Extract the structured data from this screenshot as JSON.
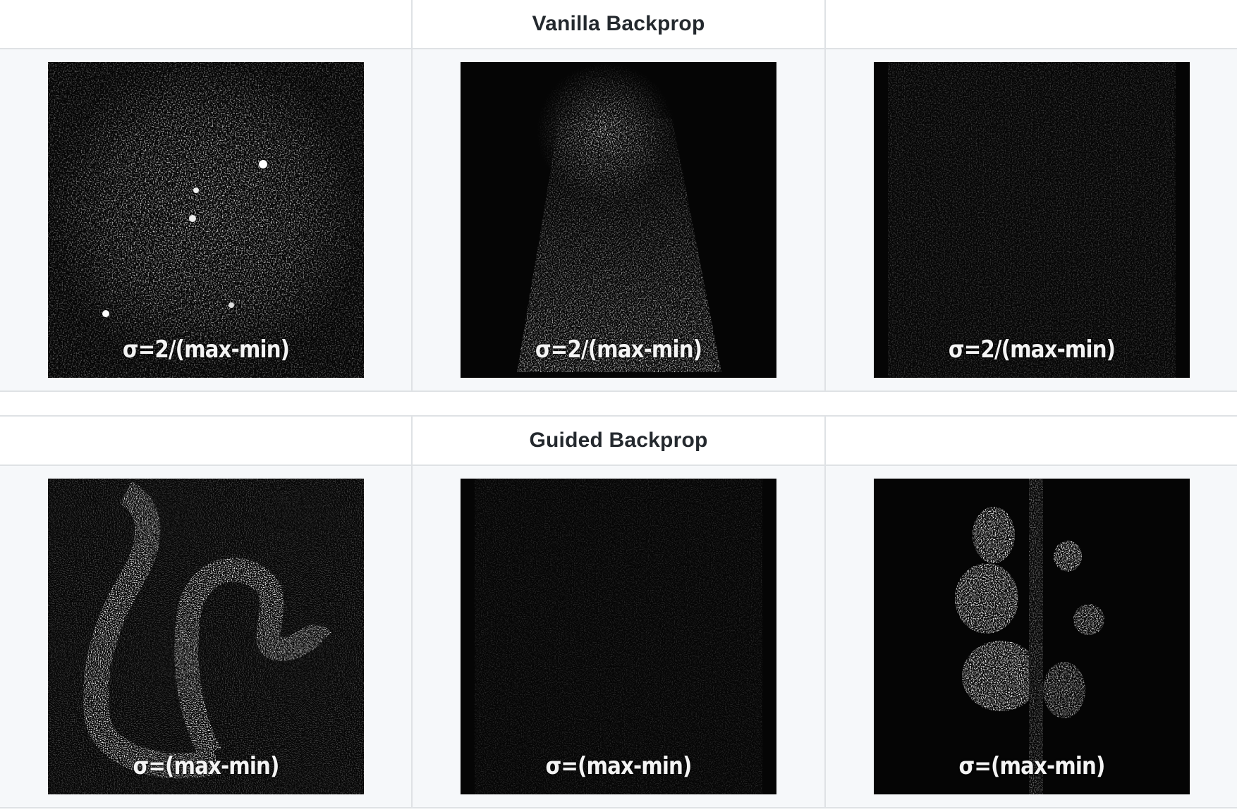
{
  "sections": [
    {
      "header": [
        "",
        "Vanilla Backprop",
        ""
      ],
      "images": [
        {
          "icon": "vanilla-saliency-map-1",
          "caption": "σ=2/(max-min)"
        },
        {
          "icon": "vanilla-saliency-map-2",
          "caption": "σ=2/(max-min)"
        },
        {
          "icon": "vanilla-saliency-map-3",
          "caption": "σ=2/(max-min)"
        }
      ]
    },
    {
      "header": [
        "",
        "Guided Backprop",
        ""
      ],
      "images": [
        {
          "icon": "guided-saliency-map-1",
          "caption": "σ=(max-min)"
        },
        {
          "icon": "guided-saliency-map-2",
          "caption": "σ=(max-min)"
        },
        {
          "icon": "guided-saliency-map-3",
          "caption": "σ=(max-min)"
        }
      ]
    }
  ],
  "colors": {
    "border": "#dfe2e5",
    "row_background": "#f6f8fa",
    "header_text": "#24292e",
    "image_background": "#050505"
  }
}
